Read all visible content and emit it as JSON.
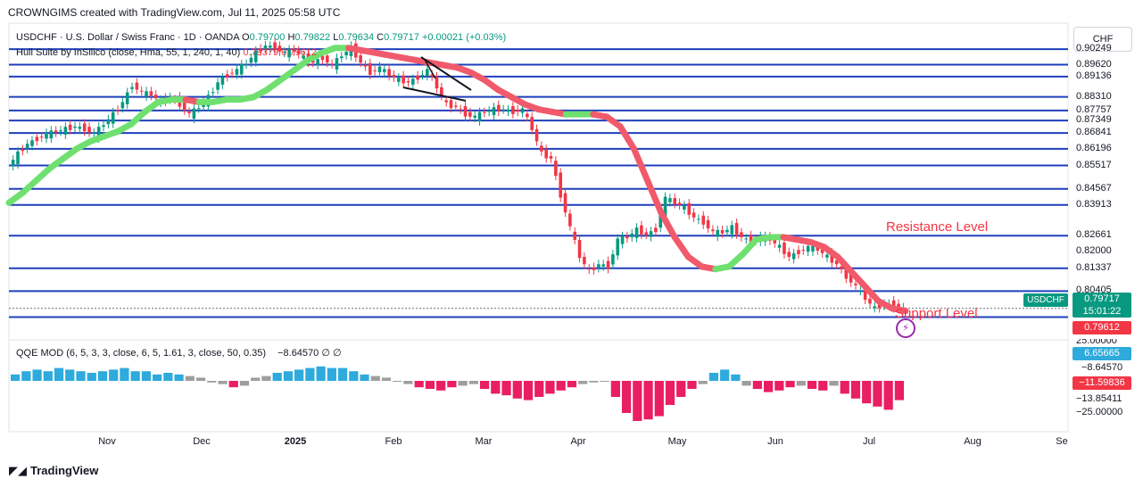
{
  "header": {
    "caption": "CROWNGIMS created with TradingView.com, Jul 11, 2025 05:58 UTC",
    "symbol_line": "USDCHF · U.S. Dollar / Swiss Franc · 1D · OANDA",
    "open_label": "O",
    "open": "0.79700",
    "high_label": "H",
    "high": "0.79822",
    "low_label": "L",
    "low": "0.79634",
    "close_label": "C",
    "close": "0.79717",
    "change": "+0.00021 (+0.03%)",
    "hull_line": "Hull Suite by InSilico (close, Hma, 55, 1, 240, 1, 40)",
    "hull_v1": "0.79379",
    "hull_v2": "0.79612",
    "qqe_line": "QQE MOD (6, 5, 3, 3, close, 6, 5, 1.61, 3, close, 50, 0.35)",
    "qqe_v": "−8.64570",
    "qqe_sym1": "∅",
    "qqe_sym2": "∅",
    "currency": "CHF"
  },
  "footer": {
    "brand": "TradingView",
    "logo_icon": "tradingview-logo-icon"
  },
  "annotations": {
    "resistance": "Resistance Level",
    "support": "Support Level",
    "bolt_icon": "lightning-icon"
  },
  "price_tags": {
    "symbol": "USDCHF",
    "current": "0.79717",
    "countdown": "15:01:22",
    "hull": "0.79612"
  },
  "qqe_tags": {
    "partial": "25.00000",
    "a": "6.65665",
    "b": "−8.64570",
    "c": "−11.59836",
    "d": "−13.85411",
    "e": "−25.00000"
  },
  "colors": {
    "level_line": "#1e3fbd",
    "bull": "#089981",
    "bear": "#f23645",
    "hull_up": "#6fe06f",
    "hull_down": "#f05a6a",
    "qqe_blue": "#2eaadc",
    "qqe_grey": "#9e9e9e",
    "qqe_pink": "#e91e63",
    "qqe_tag_blue": "#2eaadc",
    "qqe_tag_red": "#f23645"
  },
  "chart_data": {
    "type": "candlestick",
    "title": "USDCHF · U.S. Dollar / Swiss Franc · 1D · OANDA",
    "ylim": [
      0.7875,
      0.908
    ],
    "x_ticks": [
      "Nov",
      "Dec",
      "2025",
      "Feb",
      "Mar",
      "Apr",
      "May",
      "Jun",
      "Jul",
      "Aug",
      "Se"
    ],
    "price_axis": [
      "0.90249",
      "0.89620",
      "0.89136",
      "0.88310",
      "0.87757",
      "0.87349",
      "0.86841",
      "0.86196",
      "0.85517",
      "0.84567",
      "0.83913",
      "0.82661",
      "0.82000",
      "0.81337",
      "0.80405"
    ],
    "horizontal_levels": [
      0.90249,
      0.8962,
      0.89136,
      0.8831,
      0.87757,
      0.87349,
      0.86841,
      0.86196,
      0.85517,
      0.84567,
      0.83913,
      0.82661,
      0.81337,
      0.80405,
      0.79717,
      0.797,
      0.7935
    ],
    "close_path": [
      0.855,
      0.86,
      0.864,
      0.866,
      0.868,
      0.869,
      0.87,
      0.871,
      0.87,
      0.868,
      0.872,
      0.876,
      0.881,
      0.888,
      0.885,
      0.884,
      0.881,
      0.883,
      0.88,
      0.876,
      0.879,
      0.883,
      0.889,
      0.892,
      0.894,
      0.897,
      0.901,
      0.904,
      0.903,
      0.901,
      0.902,
      0.899,
      0.897,
      0.899,
      0.896,
      0.9,
      0.903,
      0.897,
      0.893,
      0.895,
      0.892,
      0.89,
      0.889,
      0.891,
      0.894,
      0.887,
      0.88,
      0.879,
      0.876,
      0.875,
      0.877,
      0.878,
      0.878,
      0.877,
      0.878,
      0.87,
      0.86,
      0.858,
      0.843,
      0.83,
      0.818,
      0.812,
      0.815,
      0.814,
      0.825,
      0.826,
      0.829,
      0.827,
      0.829,
      0.842,
      0.84,
      0.838,
      0.834,
      0.832,
      0.828,
      0.828,
      0.83,
      0.826,
      0.824,
      0.826,
      0.825,
      0.822,
      0.818,
      0.82,
      0.822,
      0.821,
      0.818,
      0.815,
      0.81,
      0.806,
      0.801,
      0.797,
      0.799,
      0.798,
      0.797
    ],
    "hull": [
      0.84,
      0.844,
      0.849,
      0.854,
      0.858,
      0.862,
      0.865,
      0.867,
      0.869,
      0.872,
      0.877,
      0.881,
      0.882,
      0.882,
      0.881,
      0.881,
      0.882,
      0.882,
      0.883,
      0.886,
      0.89,
      0.894,
      0.898,
      0.901,
      0.903,
      0.903,
      0.902,
      0.901,
      0.9,
      0.899,
      0.898,
      0.897,
      0.896,
      0.895,
      0.893,
      0.89,
      0.886,
      0.883,
      0.88,
      0.878,
      0.877,
      0.876,
      0.876,
      0.876,
      0.875,
      0.871,
      0.862,
      0.849,
      0.836,
      0.826,
      0.818,
      0.814,
      0.813,
      0.814,
      0.819,
      0.825,
      0.826,
      0.826,
      0.825,
      0.824,
      0.822,
      0.818,
      0.812,
      0.806,
      0.8,
      0.797,
      0.796
    ],
    "hull_value": 0.79612,
    "qqe": {
      "upper": 25.0,
      "lower": -25.0,
      "hist": [
        4,
        6,
        7,
        6,
        8,
        7,
        6,
        5,
        6,
        7,
        8,
        6,
        6,
        4,
        5,
        4,
        3,
        2,
        -1,
        -2,
        -4,
        -3,
        2,
        3,
        5,
        6,
        7,
        8,
        9,
        8,
        8,
        6,
        4,
        3,
        2,
        0,
        -2,
        -4,
        -5,
        -6,
        -4,
        -3,
        -2,
        -5,
        -8,
        -9,
        -11,
        -12,
        -10,
        -8,
        -6,
        -4,
        -2,
        -1,
        0,
        -10,
        -20,
        -25,
        -24,
        -22,
        -15,
        -10,
        -5,
        -2,
        5,
        7,
        4,
        -3,
        -5,
        -7,
        -6,
        -4,
        -3,
        -5,
        -6,
        -3,
        -8,
        -11,
        -14,
        -16,
        -18,
        -12
      ]
    }
  }
}
